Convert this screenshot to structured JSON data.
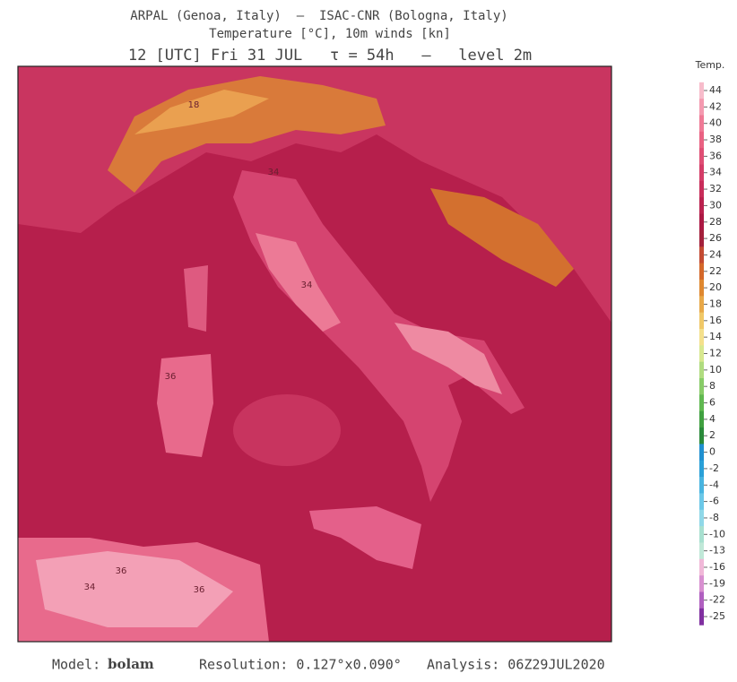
{
  "header": {
    "line1": "ARPAL (Genoa, Italy)  —  ISAC-CNR (Bologna, Italy)",
    "line2": "Temperature [°C], 10m winds [kn]",
    "line3": "12 [UTC] Fri 31 JUL   τ = 54h   –   level 2m"
  },
  "map": {
    "contour_labels": [
      "18",
      "34",
      "36",
      "34",
      "36",
      "36",
      "34"
    ]
  },
  "colorbar": {
    "title": "Temp.",
    "ticks": [
      {
        "value": 44,
        "color": "#f7bccb"
      },
      {
        "value": 42,
        "color": "#f49ab0"
      },
      {
        "value": 40,
        "color": "#ef7a96"
      },
      {
        "value": 38,
        "color": "#e96282"
      },
      {
        "value": 36,
        "color": "#df4e74"
      },
      {
        "value": 34,
        "color": "#d43c67"
      },
      {
        "value": 32,
        "color": "#c82d5a"
      },
      {
        "value": 30,
        "color": "#ba214e"
      },
      {
        "value": 28,
        "color": "#ab1843"
      },
      {
        "value": 26,
        "color": "#a3203b"
      },
      {
        "value": 24,
        "color": "#c34a32"
      },
      {
        "value": 22,
        "color": "#d4682a"
      },
      {
        "value": 20,
        "color": "#df8830"
      },
      {
        "value": 18,
        "color": "#e8a848"
      },
      {
        "value": 16,
        "color": "#f0c868"
      },
      {
        "value": 14,
        "color": "#f4e08c"
      },
      {
        "value": 12,
        "color": "#d8e890"
      },
      {
        "value": 10,
        "color": "#b0dc80"
      },
      {
        "value": 8,
        "color": "#88cc68"
      },
      {
        "value": 6,
        "color": "#60b850"
      },
      {
        "value": 4,
        "color": "#40a040"
      },
      {
        "value": 2,
        "color": "#2a8a3a"
      },
      {
        "value": 0,
        "color": "#2090d0"
      },
      {
        "value": -2,
        "color": "#2aa0d8"
      },
      {
        "value": -4,
        "color": "#48b4e0"
      },
      {
        "value": -6,
        "color": "#6cc8e8"
      },
      {
        "value": -8,
        "color": "#90d8e8"
      },
      {
        "value": -10,
        "color": "#a8e0d0"
      },
      {
        "value": -13,
        "color": "#c0e8d8"
      },
      {
        "value": -16,
        "color": "#f0b8d8"
      },
      {
        "value": -19,
        "color": "#d890d0"
      },
      {
        "value": -22,
        "color": "#b060c0"
      },
      {
        "value": -25,
        "color": "#8030a0"
      }
    ]
  },
  "footer": {
    "model_label": "Model:",
    "model": "bolam",
    "resolution": "Resolution: 0.127°x0.090°",
    "analysis": "Analysis: 06Z29JUL2020"
  }
}
